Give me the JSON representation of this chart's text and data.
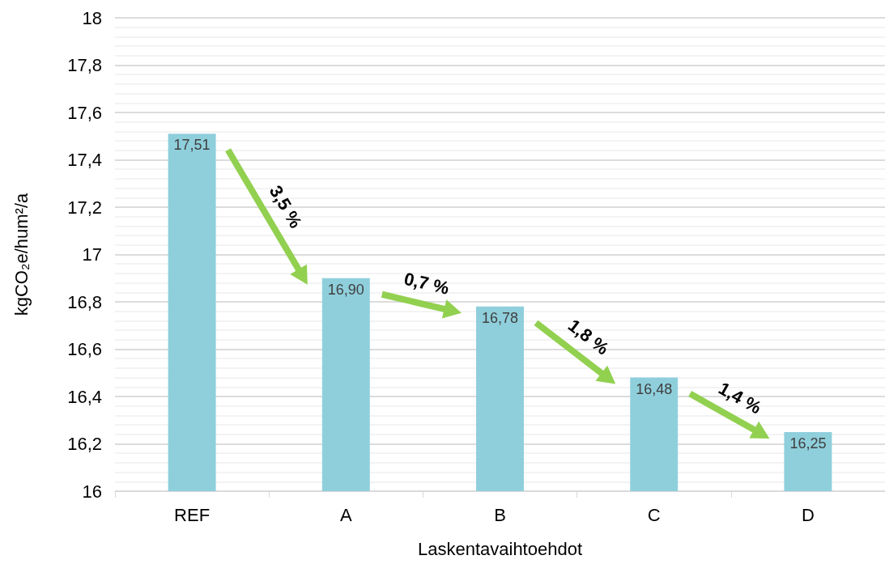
{
  "chart_data": {
    "type": "bar",
    "xlabel": "Laskentavaihtoehdot",
    "ylabel": "kgCO₂e/hum²/a",
    "categories": [
      "REF",
      "A",
      "B",
      "C",
      "D"
    ],
    "values": [
      17.51,
      16.9,
      16.78,
      16.48,
      16.25
    ],
    "value_labels": [
      "17,51",
      "16,90",
      "16,78",
      "16,48",
      "16,25"
    ],
    "color": "#8fcfdc",
    "ylim": [
      16,
      18
    ],
    "yticks": [
      16,
      {
        "value": 16.2,
        "label": "16,2"
      },
      {
        "value": 16.4,
        "label": "16,4"
      },
      {
        "value": 16.6,
        "label": "16,6"
      },
      {
        "value": 16.8,
        "label": "16,8"
      },
      17,
      {
        "value": 17.2,
        "label": "17,2"
      },
      {
        "value": 17.4,
        "label": "17,4"
      },
      {
        "value": 17.6,
        "label": "17,6"
      },
      {
        "value": 17.8,
        "label": "17,8"
      },
      18
    ],
    "grid": "y",
    "annotations": [
      "3,5 %",
      "0,7 %",
      "1,8 %",
      "1,4 %"
    ]
  }
}
